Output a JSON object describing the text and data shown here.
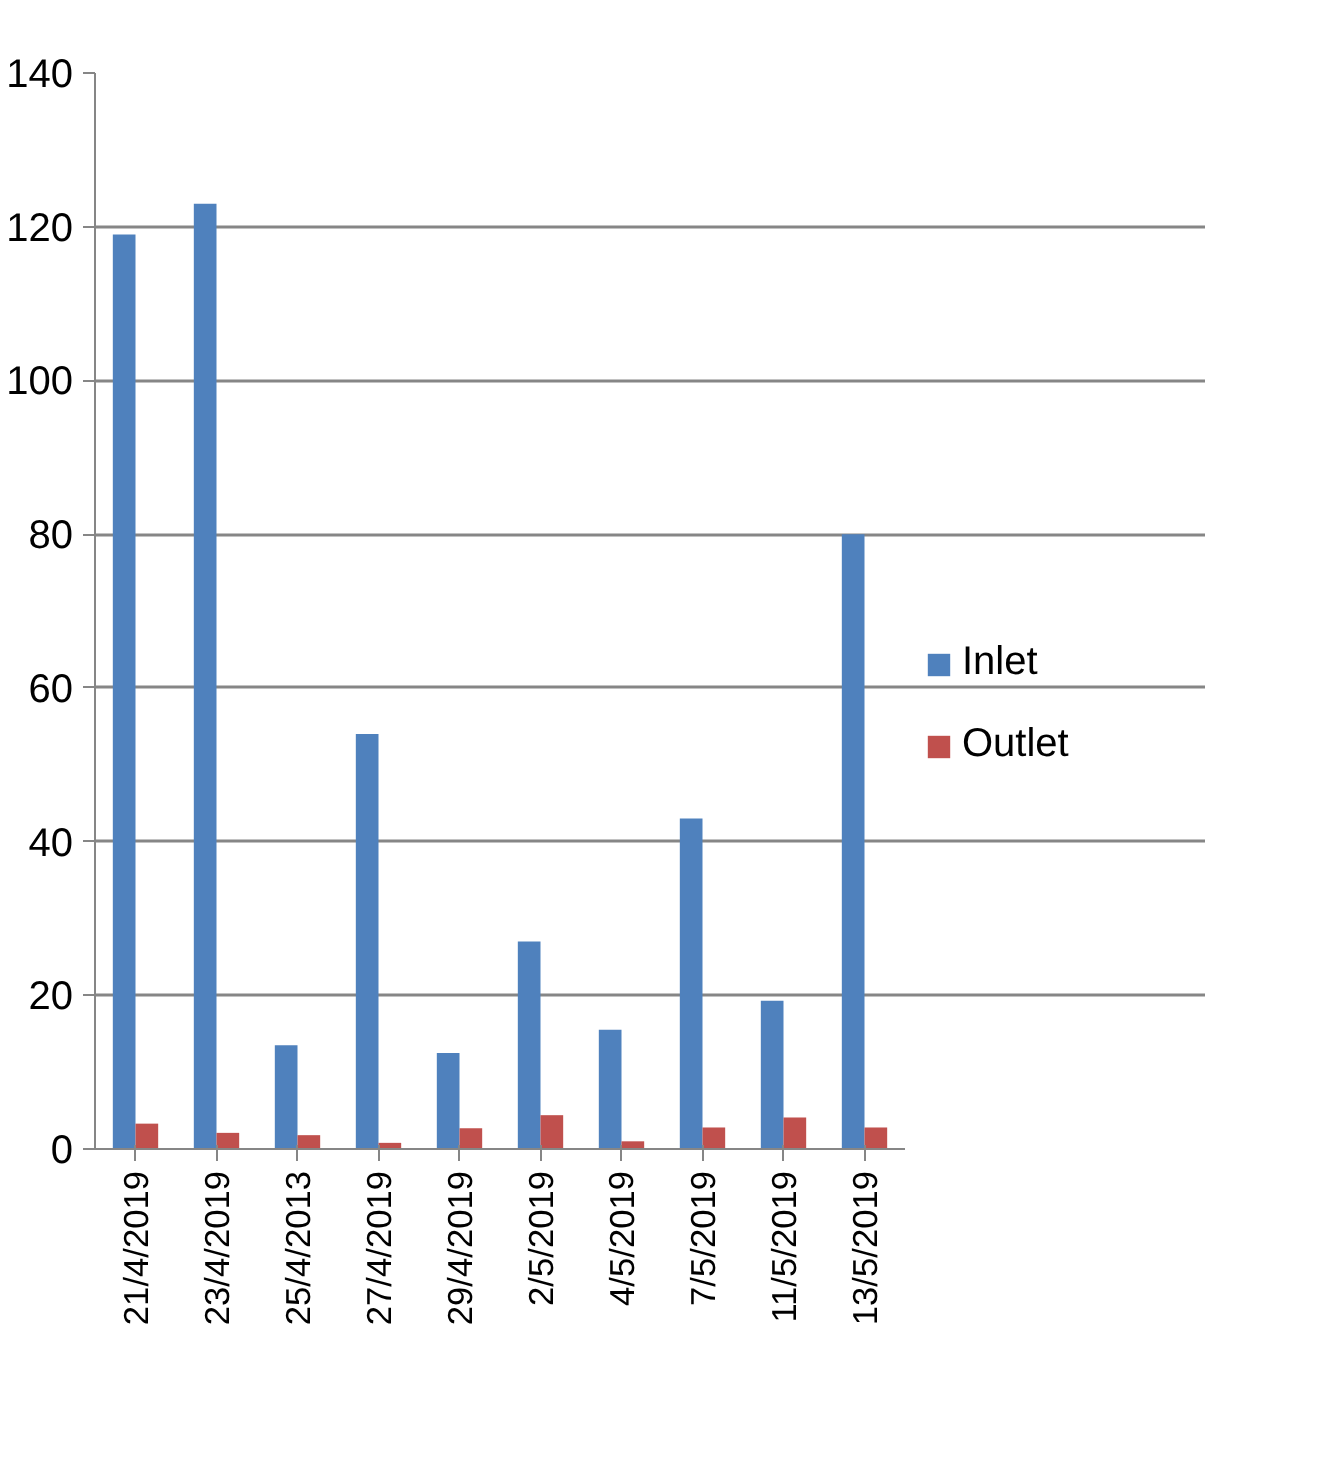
{
  "chart_data": {
    "type": "bar",
    "categories": [
      "21/4/2019",
      "23/4/2019",
      "25/4/2013",
      "27/4/2019",
      "29/4/2019",
      "2/5/2019",
      "4/5/2019",
      "7/5/2019",
      "11/5/2019",
      "13/5/2019"
    ],
    "series": [
      {
        "name": "Inlet",
        "color": "#4f81bd",
        "values": [
          119,
          123,
          13.5,
          54,
          12.5,
          27,
          15.5,
          43,
          19.3,
          80
        ]
      },
      {
        "name": "Outlet",
        "color": "#c0504d",
        "values": [
          3.3,
          2.1,
          1.8,
          0.8,
          2.7,
          4.4,
          1.0,
          2.8,
          4.1,
          2.8
        ]
      }
    ],
    "ylim": [
      0,
      140
    ],
    "yticks": [
      0,
      20,
      40,
      60,
      80,
      100,
      120,
      140
    ],
    "grid": "y",
    "legend": "right"
  }
}
